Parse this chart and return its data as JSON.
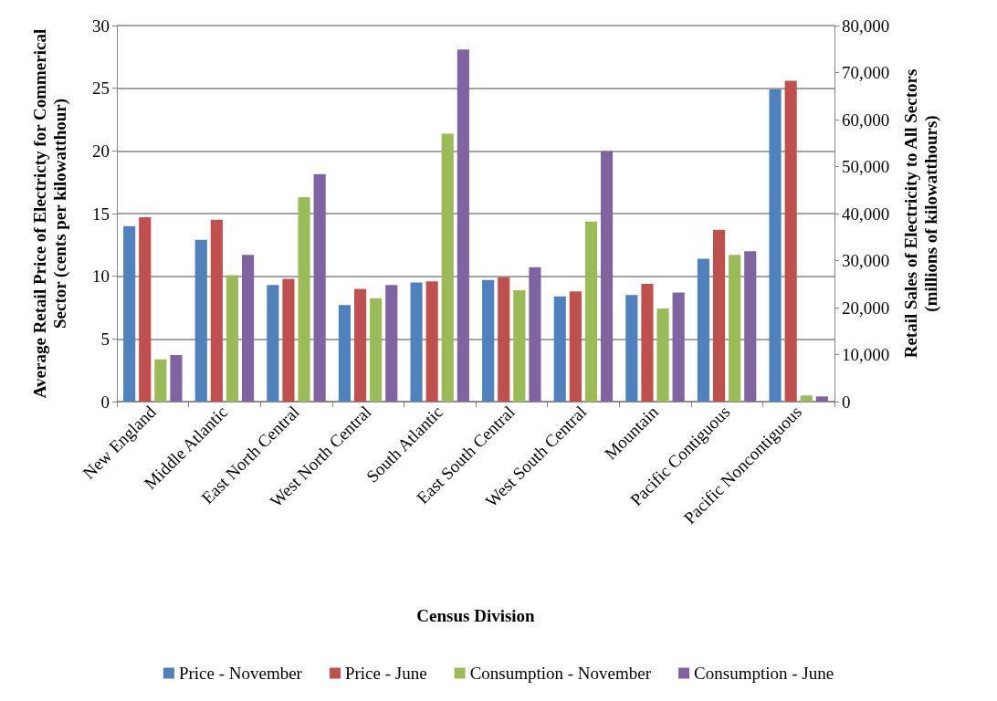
{
  "chart_data": {
    "type": "bar",
    "xlabel": "Census Division",
    "ylabel": "Average Retail Price of Electricty for Commerical Sector (cents per kilowatthour)",
    "y2label": "Retail Sales of Electricity to All Sectors (millions of kilowatthours)",
    "categories": [
      "New England",
      "Middle Atlantic",
      "East North Central",
      "West North Central",
      "South Atlantic",
      "East South Central",
      "West South Central",
      "Mountain",
      "Pacific Contiguous",
      "Pacific Noncontiguous"
    ],
    "series": [
      {
        "name": "Price - November",
        "color": "#4f81bd",
        "values": [
          14.0,
          12.9,
          9.3,
          7.7,
          9.5,
          9.7,
          8.4,
          8.5,
          11.4,
          24.9
        ]
      },
      {
        "name": "Price - June",
        "color": "#c0504d",
        "values": [
          14.7,
          14.5,
          9.8,
          9.0,
          9.6,
          9.9,
          8.8,
          9.4,
          13.7,
          25.6
        ]
      },
      {
        "name": "Consumption - November",
        "color": "#9bbb59",
        "axis": "y2",
        "values": [
          9000,
          26900,
          43500,
          22000,
          57000,
          23700,
          38300,
          19800,
          31200,
          1300
        ]
      },
      {
        "name": "Consumption - June",
        "color": "#8064a2",
        "axis": "y2",
        "values": [
          9900,
          31200,
          48400,
          24800,
          74900,
          28600,
          53300,
          23200,
          32000,
          1100
        ]
      }
    ],
    "ylim": [
      0,
      30
    ],
    "yticks": [
      0,
      5,
      10,
      15,
      20,
      25,
      30
    ],
    "y2lim": [
      0,
      80000
    ],
    "y2ticks": [
      0,
      {
        "value": 10000,
        "label": "10,000"
      },
      {
        "value": 20000,
        "label": "20,000"
      },
      {
        "value": 30000,
        "label": "30,000"
      },
      {
        "value": 40000,
        "label": "40,000"
      },
      {
        "value": 50000,
        "label": "50,000"
      },
      {
        "value": 60000,
        "label": "60,000"
      },
      {
        "value": 70000,
        "label": "70,000"
      },
      {
        "value": 80000,
        "label": "80,000"
      }
    ],
    "grid": "y",
    "legend": "bottom"
  }
}
